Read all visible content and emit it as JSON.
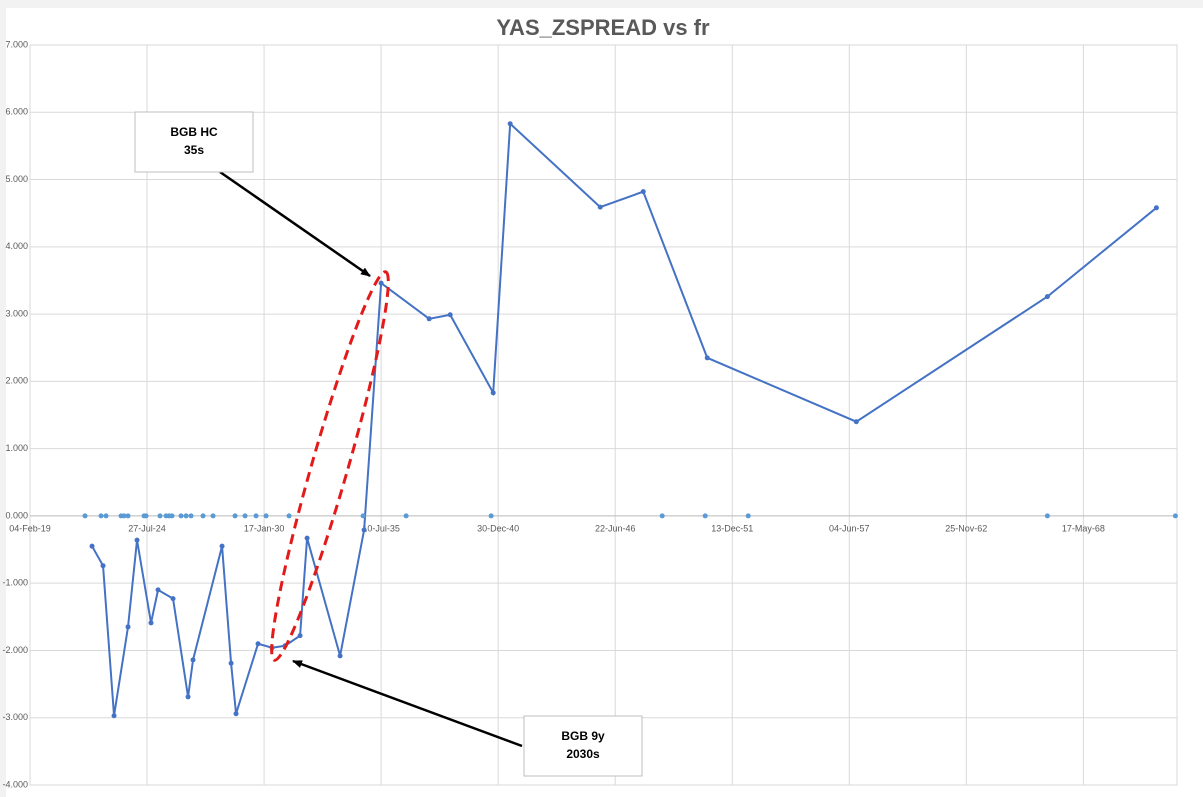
{
  "chart_data": {
    "type": "scatter",
    "title": "YAS_ZSPREAD vs fr",
    "xlim": [
      43500,
      63100
    ],
    "xticks": [
      {
        "value": 43500,
        "label": "04-Feb-19"
      },
      {
        "value": 45500,
        "label": "27-Jul-24"
      },
      {
        "value": 47500,
        "label": "17-Jan-30"
      },
      {
        "value": 49500,
        "label": "10-Jul-35"
      },
      {
        "value": 51500,
        "label": "30-Dec-40"
      },
      {
        "value": 53500,
        "label": "22-Jun-46"
      },
      {
        "value": 55500,
        "label": "13-Dec-51"
      },
      {
        "value": 57500,
        "label": "04-Jun-57"
      },
      {
        "value": 59500,
        "label": "25-Nov-62"
      },
      {
        "value": 61500,
        "label": "17-May-68"
      }
    ],
    "ylim": [
      -4,
      7
    ],
    "yticks": [
      {
        "value": -4,
        "label": "-4.000"
      },
      {
        "value": -3,
        "label": "-3.000"
      },
      {
        "value": -2,
        "label": "-2.000"
      },
      {
        "value": -1,
        "label": "-1.000"
      },
      {
        "value": 0,
        "label": "0.000"
      },
      {
        "value": 1,
        "label": "1.000"
      },
      {
        "value": 2,
        "label": "2.000"
      },
      {
        "value": 3,
        "label": "3.000"
      },
      {
        "value": 4,
        "label": "4.000"
      },
      {
        "value": 5,
        "label": "5.000"
      },
      {
        "value": 6,
        "label": "6.000"
      },
      {
        "value": 7,
        "label": "7.000"
      }
    ],
    "grid": true,
    "series": [
      {
        "color": "#4472c4",
        "line": true,
        "x": [
          44560,
          44748,
          44936,
          45175,
          45329,
          45568,
          45688,
          45944,
          46201,
          46286,
          46782,
          46936,
          47021,
          47397,
          47637,
          47859,
          48115,
          48235,
          48799,
          49209,
          49500,
          50321,
          50680,
          51415,
          51705,
          53244,
          53979,
          55073,
          57620,
          60885,
          62748
        ],
        "values": [
          -0.45,
          -0.74,
          -2.97,
          -1.65,
          -0.36,
          -1.59,
          -1.1,
          -1.23,
          -2.69,
          -2.14,
          -0.45,
          -2.19,
          -2.94,
          -1.9,
          -1.96,
          -1.93,
          -1.78,
          -0.33,
          -2.08,
          -0.21,
          3.46,
          2.93,
          2.99,
          1.83,
          5.83,
          4.59,
          4.82,
          2.35,
          1.4,
          3.26,
          4.58
        ]
      },
      {
        "color": "#5b9bd5",
        "line": false,
        "x": [
          44440,
          44714,
          44799,
          45056,
          45107,
          45175,
          45449,
          45483,
          45722,
          45825,
          45876,
          45927,
          46081,
          46167,
          46252,
          46457,
          46628,
          47004,
          47175,
          47363,
          47534,
          47927,
          49192,
          49927,
          51380,
          54303,
          55038,
          55773,
          60885,
          63073
        ],
        "values": [
          0,
          0,
          0,
          0,
          0,
          0,
          0,
          0,
          0,
          0,
          0,
          0,
          0,
          0,
          0,
          0,
          0,
          0,
          0,
          0,
          0,
          0,
          0,
          0,
          0,
          0,
          0,
          0,
          0,
          0
        ]
      }
    ],
    "annotations": [
      {
        "lines": [
          "BGB HC",
          "35s"
        ]
      },
      {
        "lines": [
          "BGB 9y",
          "2030s"
        ]
      }
    ]
  }
}
